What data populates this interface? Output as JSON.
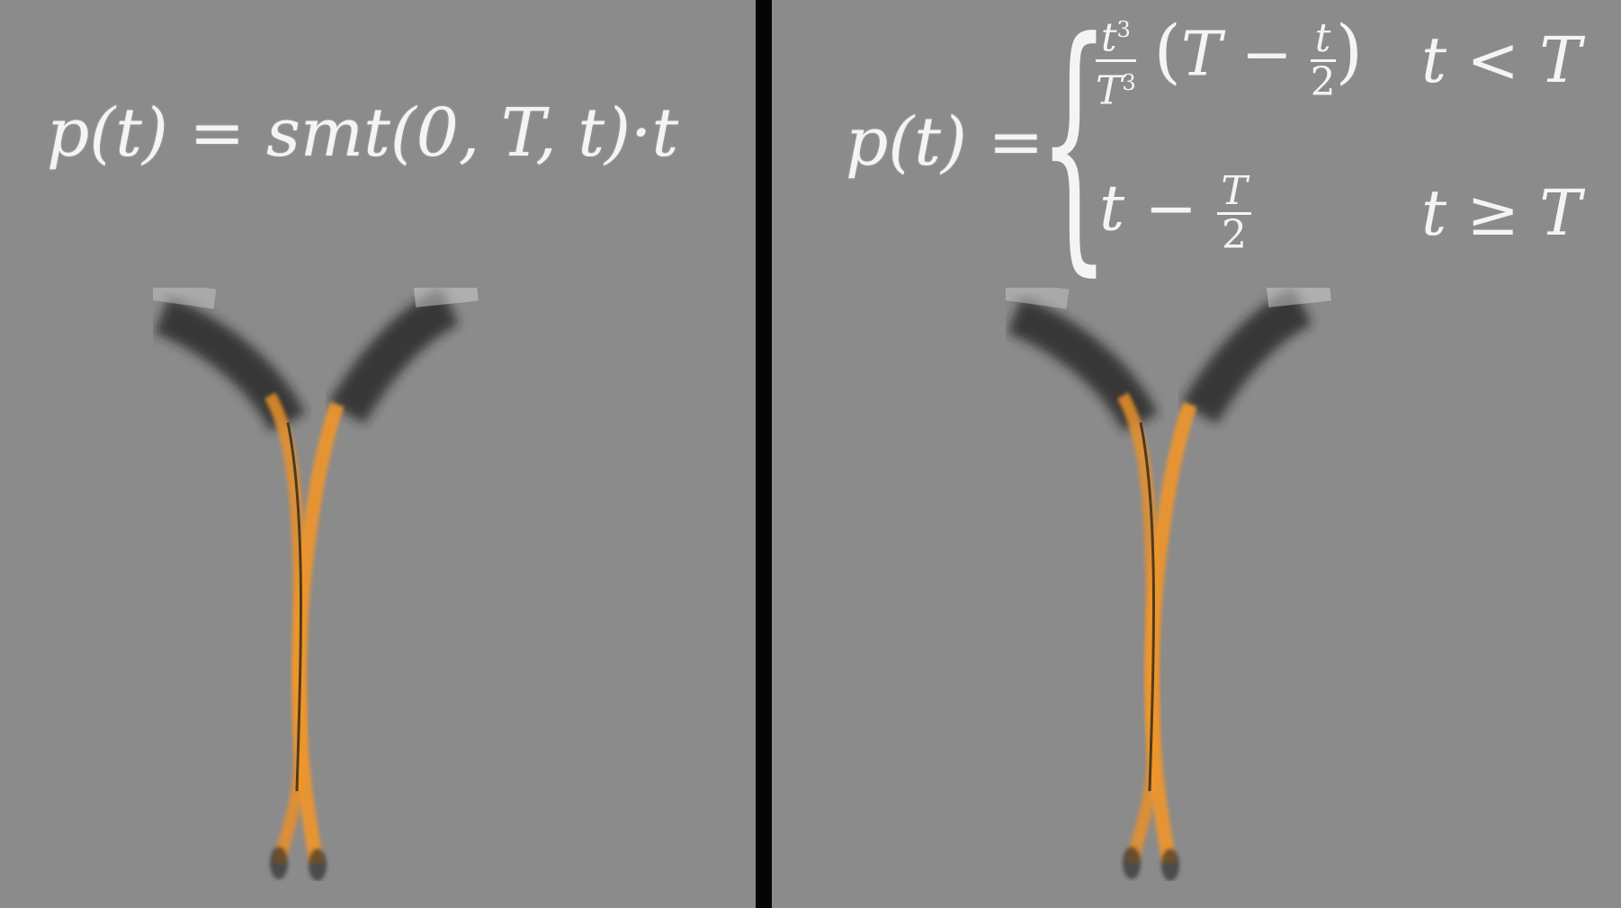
{
  "left_panel": {
    "equation": {
      "lhs": "p(t)",
      "equals": "=",
      "rhs": "smt(0, T, t)·t"
    }
  },
  "right_panel": {
    "equation": {
      "lhs": "p(t)",
      "equals": "=",
      "case1": {
        "numerator": "t",
        "numerator_exp": "3",
        "denominator": "T",
        "denominator_exp": "3",
        "paren_open": "(",
        "paren_T": "T −",
        "inner_num": "t",
        "inner_den": "2",
        "paren_close": ")",
        "condition": "t < T"
      },
      "case2": {
        "expr_t": "t −",
        "frac_num": "T",
        "frac_den": "2",
        "condition": "t ≥ T"
      }
    }
  },
  "colors": {
    "background": "#8b8b8b",
    "divider": "#050505",
    "text": "#f4f4f4",
    "accent_orange": "#e8902a",
    "trail_dark": "#1a1a1a"
  }
}
